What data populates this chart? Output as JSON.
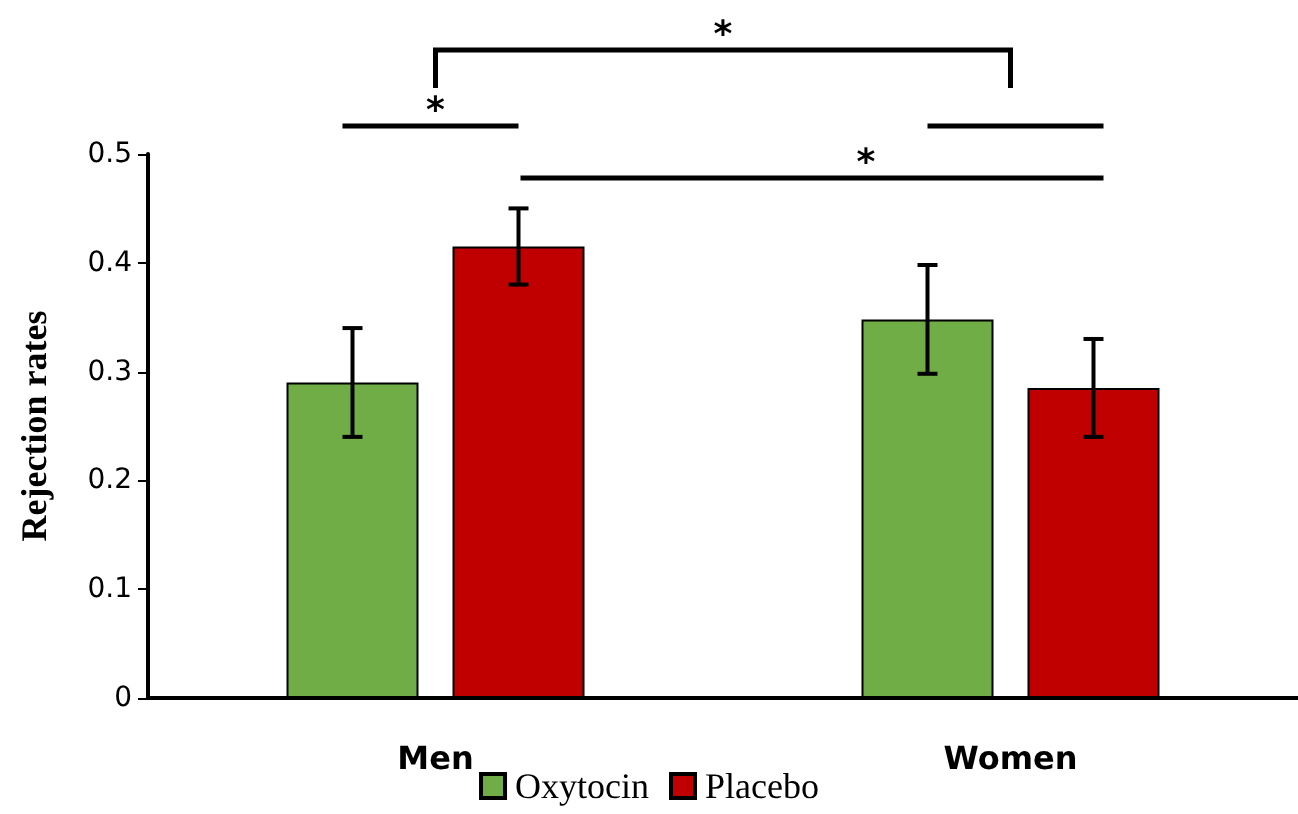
{
  "chart_data": {
    "type": "bar",
    "ylabel": "Rejection rates",
    "categories": [
      "Men",
      "Women"
    ],
    "series": [
      {
        "name": "Oxytocin",
        "color": "#70ad47",
        "values": [
          0.29,
          0.348
        ],
        "errors": [
          0.05,
          0.05
        ]
      },
      {
        "name": "Placebo",
        "color": "#c00000",
        "values": [
          0.415,
          0.285
        ],
        "errors": [
          0.035,
          0.045
        ]
      }
    ],
    "ylim": [
      0,
      0.5
    ],
    "yticks": [
      0,
      0.1,
      0.2,
      0.3,
      0.4,
      0.5
    ],
    "grid": false,
    "legend": "bottom",
    "annotations": [
      "*",
      "*",
      "*"
    ]
  }
}
